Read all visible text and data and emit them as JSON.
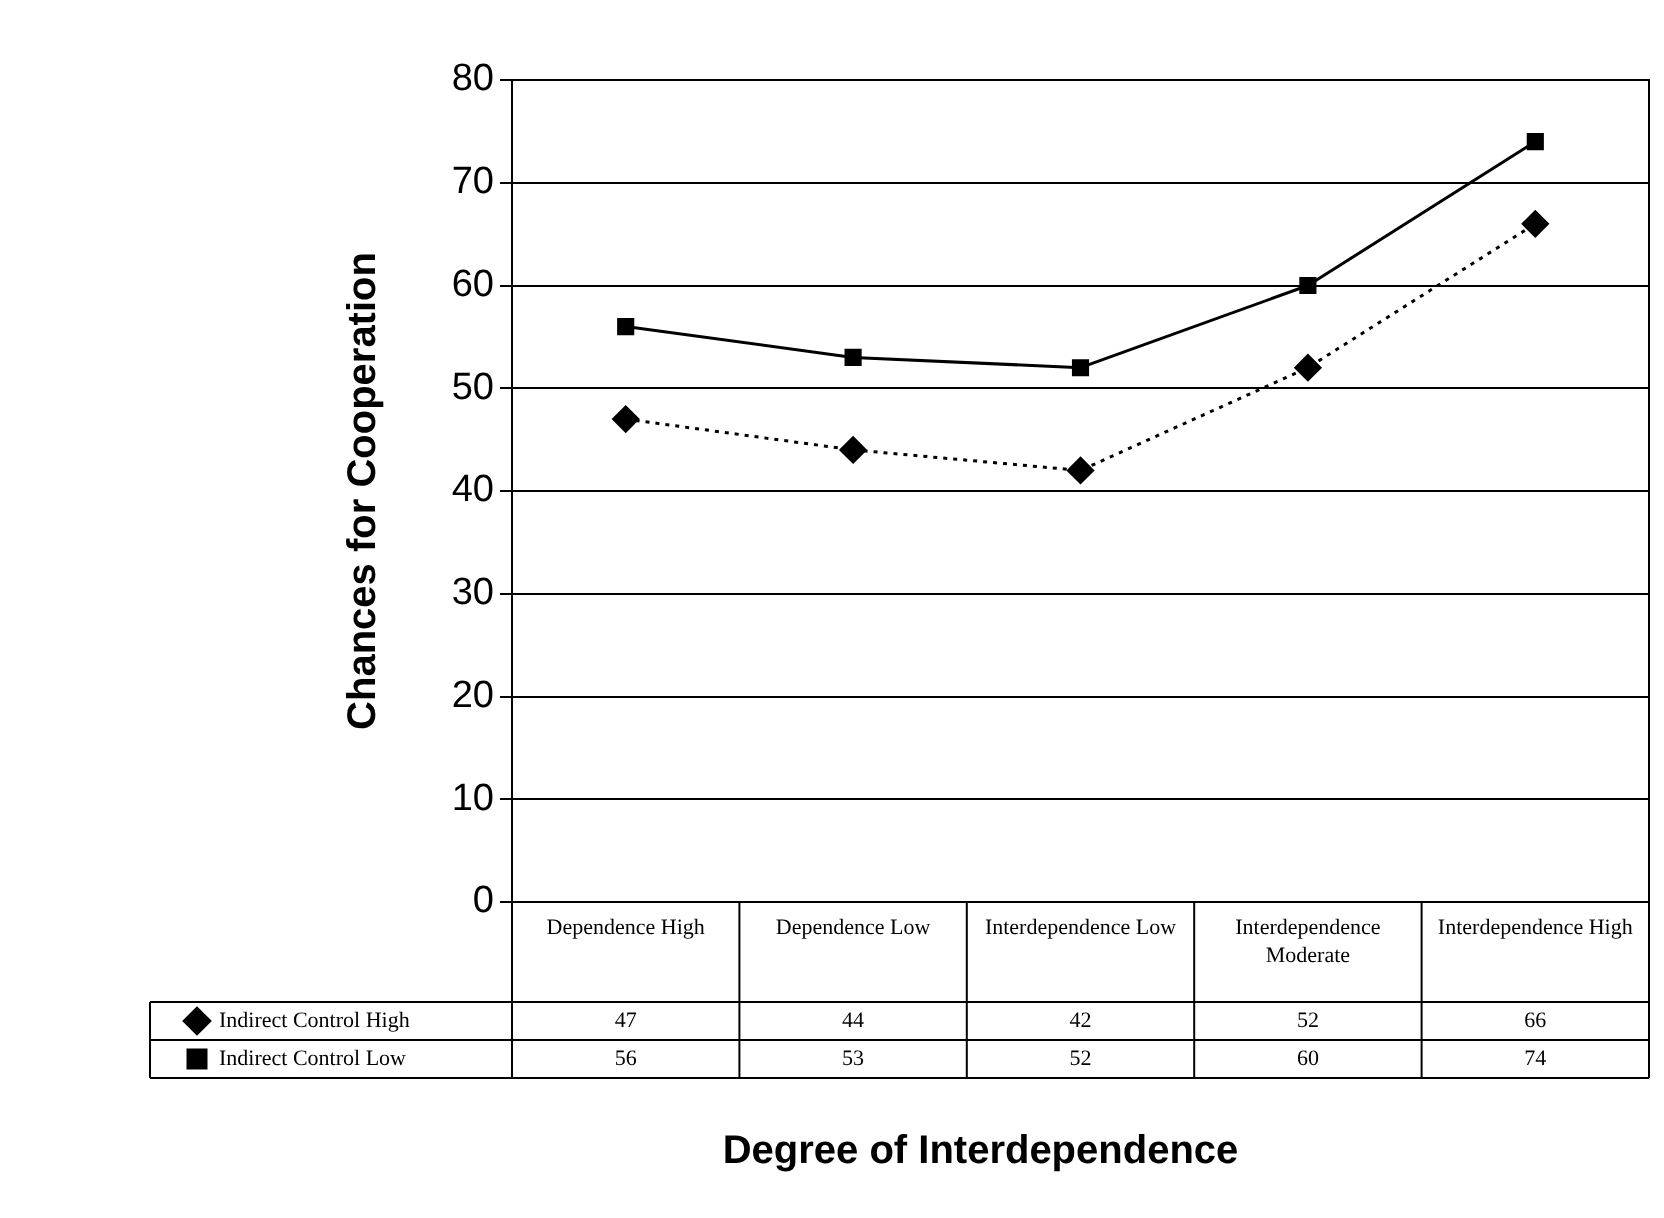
{
  "chart_data": {
    "type": "line",
    "xlabel": "Degree of Interdependence",
    "ylabel": "Chances for Cooperation",
    "categories": [
      "Dependence High",
      "Dependence Low",
      "Interdependence Low",
      "Interdependence Moderate",
      "Interdependence High"
    ],
    "series": [
      {
        "name": "Indirect Control High",
        "color": "#000000",
        "values": [
          47,
          44,
          42,
          52,
          66
        ],
        "marker": "diamond",
        "line_style": "dotted"
      },
      {
        "name": "Indirect Control Low",
        "color": "#000000",
        "values": [
          56,
          53,
          52,
          60,
          74
        ],
        "marker": "square",
        "line_style": "solid"
      }
    ],
    "ylim": [
      0,
      80
    ],
    "yticks": [
      0,
      10,
      20,
      30,
      40,
      50,
      60,
      70,
      80
    ],
    "grid": "y",
    "legend": "bottom",
    "data_labels": true
  }
}
